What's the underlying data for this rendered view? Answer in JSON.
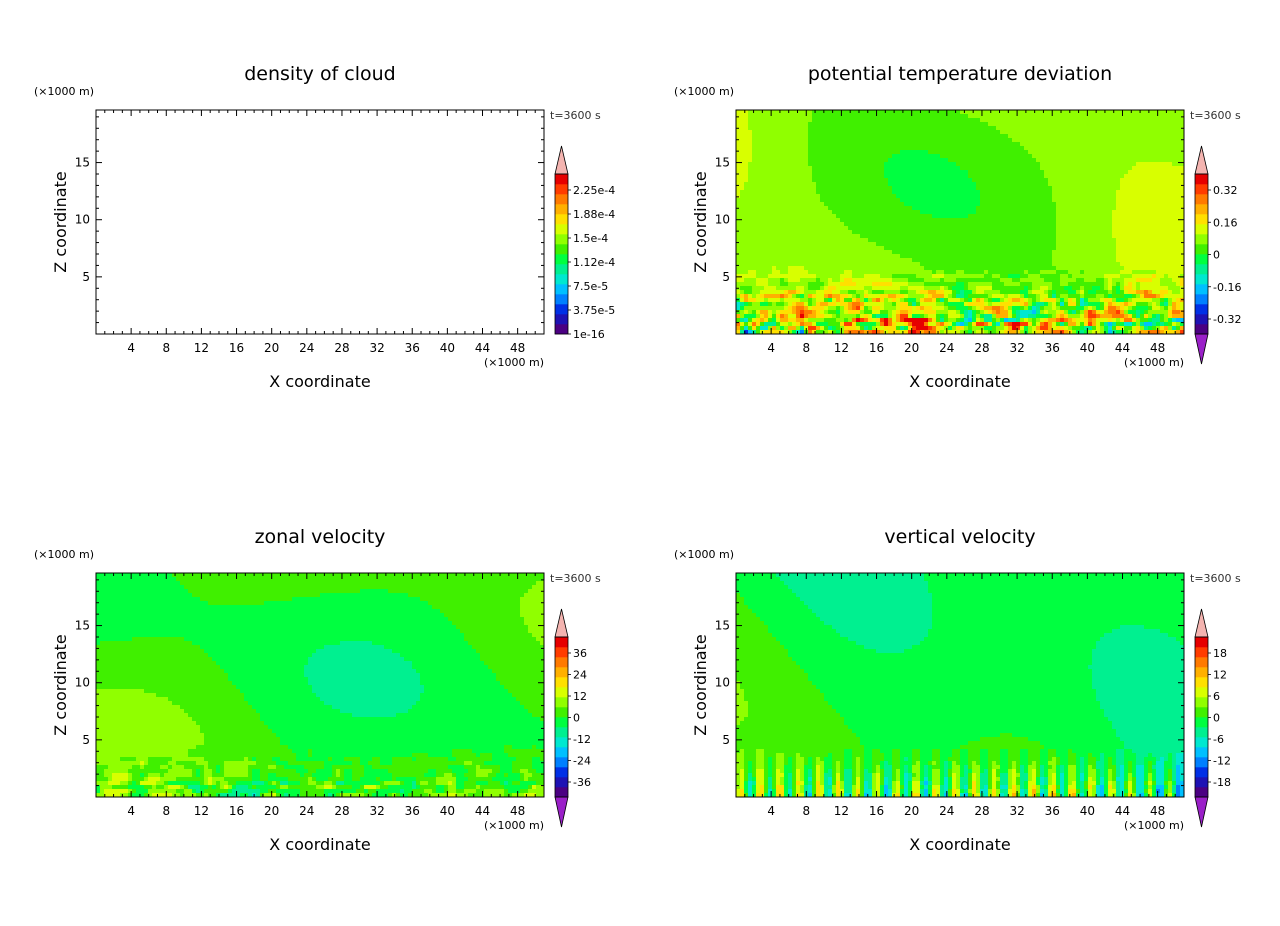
{
  "chart_data": [
    {
      "type": "heatmap",
      "title": "density of cloud",
      "xlabel": "X coordinate",
      "ylabel": "Z coordinate",
      "x_unit": "(×1000 m)",
      "z_unit": "(×1000 m)",
      "time_label": "t=3600 s",
      "xlim": [
        0,
        51
      ],
      "ylim": [
        0,
        19.6
      ],
      "xticks": [
        "4",
        "8",
        "12",
        "16",
        "20",
        "24",
        "28",
        "32",
        "36",
        "40",
        "44",
        "48"
      ],
      "yticks": [
        "5",
        "10",
        "15"
      ],
      "colorbar_labels": [
        "2.25e-4",
        "1.88e-4",
        "1.5e-4",
        "1.12e-4",
        "7.5e-5",
        "3.75e-5",
        "1e-16"
      ],
      "colorbar_has_under": false,
      "field": "empty"
    },
    {
      "type": "heatmap",
      "title": "potential temperature deviation",
      "xlabel": "X coordinate",
      "ylabel": "Z coordinate",
      "x_unit": "(×1000 m)",
      "z_unit": "(×1000 m)",
      "time_label": "t=3600 s",
      "xlim": [
        0,
        51
      ],
      "ylim": [
        0,
        19.6
      ],
      "xticks": [
        "4",
        "8",
        "12",
        "16",
        "20",
        "24",
        "28",
        "32",
        "36",
        "40",
        "44",
        "48"
      ],
      "yticks": [
        "5",
        "10",
        "15"
      ],
      "colorbar_labels": [
        "0.32",
        "0.16",
        "0",
        "-0.16",
        "-0.32"
      ],
      "colorbar_has_under": true,
      "field": "theta"
    },
    {
      "type": "heatmap",
      "title": "zonal velocity",
      "xlabel": "X coordinate",
      "ylabel": "Z coordinate",
      "x_unit": "(×1000 m)",
      "z_unit": "(×1000 m)",
      "time_label": "t=3600 s",
      "xlim": [
        0,
        51
      ],
      "ylim": [
        0,
        19.6
      ],
      "xticks": [
        "4",
        "8",
        "12",
        "16",
        "20",
        "24",
        "28",
        "32",
        "36",
        "40",
        "44",
        "48"
      ],
      "yticks": [
        "5",
        "10",
        "15"
      ],
      "colorbar_labels": [
        "36",
        "24",
        "12",
        "0",
        "-12",
        "-24",
        "-36"
      ],
      "colorbar_has_under": true,
      "field": "u"
    },
    {
      "type": "heatmap",
      "title": "vertical velocity",
      "xlabel": "X coordinate",
      "ylabel": "Z coordinate",
      "x_unit": "(×1000 m)",
      "z_unit": "(×1000 m)",
      "time_label": "t=3600 s",
      "xlim": [
        0,
        51
      ],
      "ylim": [
        0,
        19.6
      ],
      "xticks": [
        "4",
        "8",
        "12",
        "16",
        "20",
        "24",
        "28",
        "32",
        "36",
        "40",
        "44",
        "48"
      ],
      "yticks": [
        "5",
        "10",
        "15"
      ],
      "colorbar_labels": [
        "18",
        "12",
        "6",
        "0",
        "-6",
        "-12",
        "-18"
      ],
      "colorbar_has_under": true,
      "field": "w"
    }
  ],
  "colors": {
    "palette_low_to_high": [
      "#4b0082",
      "#1e12b4",
      "#0030e6",
      "#0080ff",
      "#00c0ff",
      "#00e8d0",
      "#00f090",
      "#00ff40",
      "#40f000",
      "#90ff00",
      "#d8ff00",
      "#ffe000",
      "#ffb000",
      "#ff7a00",
      "#ff3c00",
      "#e60000"
    ],
    "over": "#f4b4b0",
    "under": "#9a20c8"
  }
}
